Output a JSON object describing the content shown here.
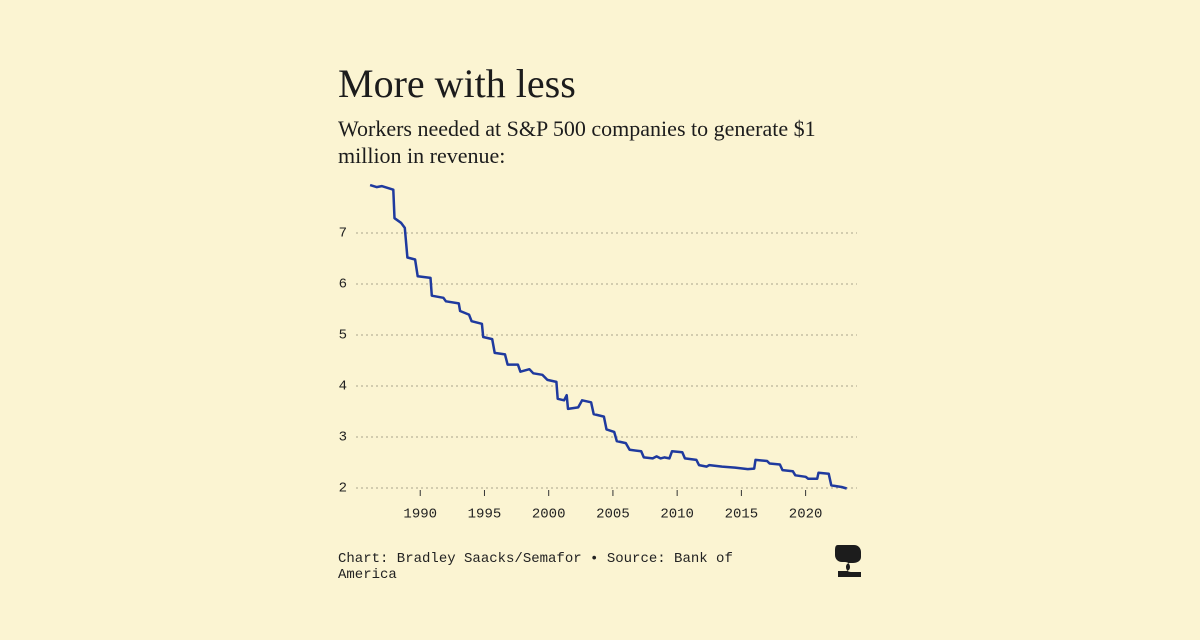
{
  "chart_data": {
    "type": "line",
    "title": "More with less",
    "subtitle": [
      "Workers needed at S&P 500 companies to generate $1",
      "million in revenue:"
    ],
    "source": [
      "Chart: Bradley Saacks/Semafor • Source: Bank of",
      "America"
    ],
    "x": [
      1986.1,
      1986.6,
      1987.0,
      1987.5,
      1987.9,
      1988.0,
      1988.5,
      1988.8,
      1989.0,
      1989.6,
      1989.8,
      1990.8,
      1990.9,
      1991.8,
      1992.0,
      1993.0,
      1993.1,
      1993.8,
      1994.0,
      1994.8,
      1994.9,
      1995.6,
      1995.8,
      1996.6,
      1996.8,
      1997.6,
      1997.8,
      1998.5,
      1998.8,
      1999.5,
      1999.9,
      2000.6,
      2000.7,
      2001.2,
      2001.4,
      2001.5,
      2002.3,
      2002.6,
      2003.3,
      2003.5,
      2004.3,
      2004.5,
      2005.1,
      2005.3,
      2006.0,
      2006.3,
      2007.2,
      2007.4,
      2008.1,
      2008.4,
      2008.7,
      2009.0,
      2009.4,
      2009.6,
      2010.4,
      2010.6,
      2011.5,
      2011.7,
      2012.3,
      2012.5,
      2013.5,
      2014.5,
      2015.5,
      2016.0,
      2016.1,
      2017.0,
      2017.2,
      2018.0,
      2018.2,
      2019.0,
      2019.2,
      2020.0,
      2020.2,
      2020.9,
      2021.0,
      2021.8,
      2022.0,
      2022.8,
      2023.2
    ],
    "series": [
      {
        "color": "#1f3a9e",
        "values": [
          7.94,
          7.9,
          7.92,
          7.88,
          7.85,
          7.29,
          7.2,
          7.1,
          6.52,
          6.48,
          6.15,
          6.12,
          5.77,
          5.73,
          5.66,
          5.62,
          5.47,
          5.4,
          5.27,
          5.22,
          4.96,
          4.92,
          4.65,
          4.62,
          4.42,
          4.42,
          4.28,
          4.33,
          4.25,
          4.22,
          4.12,
          4.08,
          3.75,
          3.72,
          3.82,
          3.55,
          3.58,
          3.72,
          3.68,
          3.45,
          3.4,
          3.15,
          3.1,
          2.92,
          2.88,
          2.75,
          2.72,
          2.6,
          2.58,
          2.62,
          2.58,
          2.6,
          2.58,
          2.72,
          2.7,
          2.58,
          2.55,
          2.45,
          2.42,
          2.45,
          2.42,
          2.4,
          2.37,
          2.38,
          2.55,
          2.53,
          2.48,
          2.46,
          2.35,
          2.33,
          2.25,
          2.22,
          2.18,
          2.18,
          2.3,
          2.28,
          2.05,
          2.02,
          1.99
        ]
      }
    ],
    "xlim": [
      1985,
      2024
    ],
    "xticks": [
      1990,
      1995,
      2000,
      2005,
      2010,
      2015,
      2020
    ],
    "ylim": [
      2,
      8
    ],
    "yticks": [
      2,
      3,
      4,
      5,
      6,
      7
    ],
    "grid": true
  }
}
